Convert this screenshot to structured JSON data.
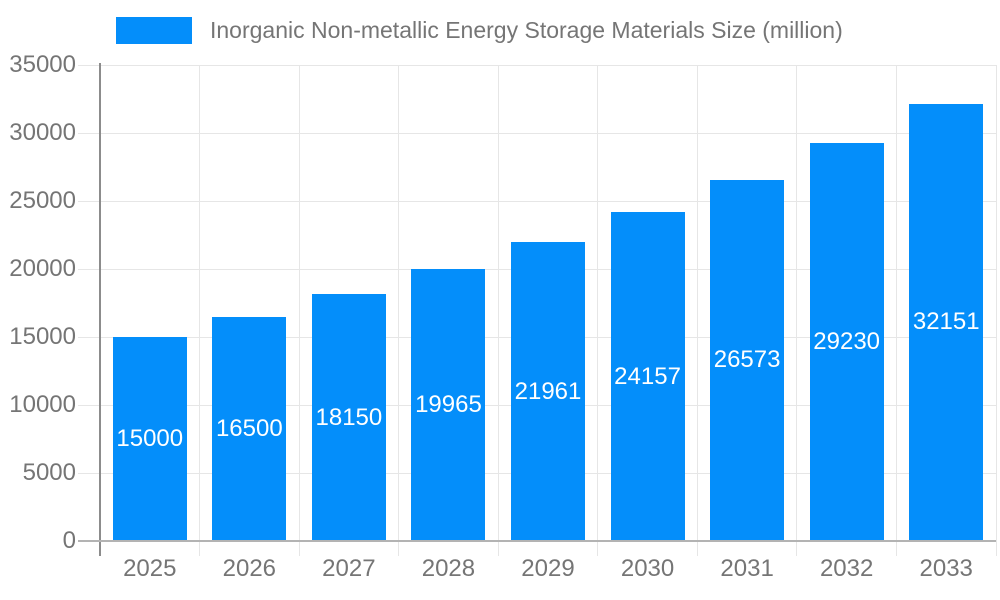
{
  "legend": {
    "label": "Inorganic Non-metallic Energy Storage Materials Size (million)"
  },
  "chart_data": {
    "type": "bar",
    "title": "Inorganic Non-metallic Energy Storage Materials Size (million)",
    "series": [
      {
        "name": "Inorganic Non-metallic Energy Storage Materials Size (million)",
        "values": [
          15000,
          16500,
          18150,
          19965,
          21961,
          24157,
          26573,
          29230,
          32151
        ]
      }
    ],
    "categories": [
      "2025",
      "2026",
      "2027",
      "2028",
      "2029",
      "2030",
      "2031",
      "2032",
      "2033"
    ],
    "bar_value_labels": [
      "15000",
      "16500",
      "18150",
      "19965",
      "21961",
      "24157",
      "26573",
      "29230",
      "32151"
    ],
    "xlabel": "",
    "ylabel": "",
    "ylim": [
      0,
      35000
    ],
    "yticks": [
      0,
      5000,
      10000,
      15000,
      20000,
      25000,
      30000,
      35000
    ],
    "grid": true,
    "legend_position": "top-left",
    "colors": {
      "bar": "#048EFA",
      "bar_label_text": "#ffffff",
      "axis_label_text": "#757575",
      "grid_line": "#e6e6e6",
      "y_axis_line": "#8c8c8c",
      "x_axis_line": "#b3b3b3",
      "tick_line": "#d9d9d9",
      "background": "#ffffff"
    }
  }
}
